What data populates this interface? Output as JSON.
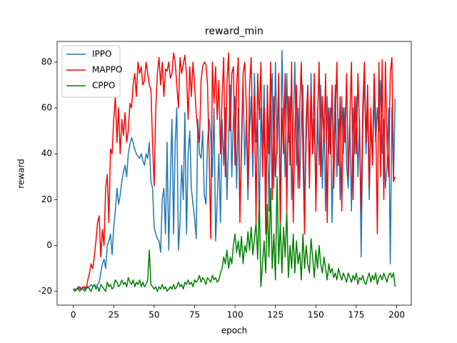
{
  "chart_data": {
    "type": "line",
    "title": "reward_min",
    "xlabel": "epoch",
    "ylabel": "reward",
    "x": [
      0,
      1,
      2,
      3,
      4,
      5,
      6,
      7,
      8,
      9,
      10,
      11,
      12,
      13,
      14,
      15,
      16,
      17,
      18,
      19,
      20,
      21,
      22,
      23,
      24,
      25,
      26,
      27,
      28,
      29,
      30,
      31,
      32,
      33,
      34,
      35,
      36,
      37,
      38,
      39,
      40,
      41,
      42,
      43,
      44,
      45,
      46,
      47,
      48,
      49,
      50,
      51,
      52,
      53,
      54,
      55,
      56,
      57,
      58,
      59,
      60,
      61,
      62,
      63,
      64,
      65,
      66,
      67,
      68,
      69,
      70,
      71,
      72,
      73,
      74,
      75,
      76,
      77,
      78,
      79,
      80,
      81,
      82,
      83,
      84,
      85,
      86,
      87,
      88,
      89,
      90,
      91,
      92,
      93,
      94,
      95,
      96,
      97,
      98,
      99,
      100,
      101,
      102,
      103,
      104,
      105,
      106,
      107,
      108,
      109,
      110,
      111,
      112,
      113,
      114,
      115,
      116,
      117,
      118,
      119,
      120,
      121,
      122,
      123,
      124,
      125,
      126,
      127,
      128,
      129,
      130,
      131,
      132,
      133,
      134,
      135,
      136,
      137,
      138,
      139,
      140,
      141,
      142,
      143,
      144,
      145,
      146,
      147,
      148,
      149,
      150,
      151,
      152,
      153,
      154,
      155,
      156,
      157,
      158,
      159,
      160,
      161,
      162,
      163,
      164,
      165,
      166,
      167,
      168,
      169,
      170,
      171,
      172,
      173,
      174,
      175,
      176,
      177,
      178,
      179,
      180,
      181,
      182,
      183,
      184,
      185,
      186,
      187,
      188,
      189,
      190,
      191,
      192,
      193,
      194,
      195,
      196,
      197,
      198,
      199
    ],
    "series": [
      {
        "name": "IPPO",
        "color": "#1f77b4",
        "values": [
          -19,
          -19,
          -19,
          -18,
          -19,
          -19,
          -18,
          -19,
          -18,
          -18,
          -18,
          -17,
          -18,
          -17,
          -18,
          -17,
          -16,
          -12,
          -8,
          -6,
          -10,
          0,
          2,
          5,
          -4,
          8,
          15,
          25,
          18,
          22,
          28,
          32,
          35,
          30,
          40,
          44,
          47,
          45,
          42,
          40,
          39,
          38,
          40,
          37,
          35,
          40,
          38,
          45,
          28,
          25,
          8,
          5,
          3,
          2,
          -3,
          20,
          25,
          5,
          45,
          -2,
          28,
          55,
          5,
          45,
          60,
          -2,
          10,
          35,
          20,
          58,
          5,
          40,
          50,
          25,
          18,
          12,
          3,
          55,
          40,
          38,
          50,
          22,
          18,
          45,
          55,
          48,
          30,
          60,
          2,
          20,
          40,
          10,
          55,
          35,
          60,
          20,
          45,
          70,
          30,
          55,
          65,
          25,
          60,
          15,
          40,
          72,
          35,
          55,
          20,
          50,
          65,
          30,
          75,
          45,
          55,
          10,
          60,
          40,
          70,
          25,
          55,
          15,
          60,
          75,
          25,
          80,
          40,
          70,
          10,
          85,
          55,
          30,
          75,
          45,
          65,
          20,
          50,
          80,
          35,
          60,
          25,
          55,
          70,
          15,
          45,
          65,
          30,
          75,
          40,
          55,
          20,
          60,
          35,
          70,
          25,
          55,
          15,
          65,
          40,
          60,
          10,
          45,
          70,
          30,
          55,
          20,
          65,
          40,
          60,
          35,
          25,
          55,
          15,
          60,
          40,
          65,
          30,
          55,
          -5,
          50,
          75,
          40,
          60,
          20,
          55,
          35,
          65,
          45,
          60,
          50,
          72,
          40,
          55,
          25,
          35,
          60,
          -8,
          60,
          28,
          64
        ]
      },
      {
        "name": "MAPPO",
        "color": "#ff0000",
        "values": [
          -19,
          -20,
          -19,
          -19,
          -18,
          -19,
          -18,
          -18,
          -19,
          -15,
          -12,
          -8,
          -10,
          -5,
          2,
          10,
          13,
          -5,
          7,
          0,
          25,
          31,
          10,
          42,
          40,
          55,
          65,
          45,
          60,
          40,
          55,
          48,
          58,
          45,
          50,
          62,
          60,
          70,
          75,
          65,
          80,
          75,
          78,
          70,
          72,
          80,
          75,
          70,
          68,
          45,
          26,
          60,
          75,
          82,
          70,
          80,
          65,
          77,
          76,
          80,
          73,
          75,
          84,
          80,
          70,
          60,
          82,
          75,
          79,
          83,
          75,
          55,
          78,
          65,
          80,
          70,
          58,
          50,
          45,
          72,
          78,
          80,
          79,
          70,
          40,
          3,
          80,
          62,
          78,
          55,
          72,
          40,
          65,
          82,
          30,
          70,
          84,
          50,
          75,
          78,
          35,
          70,
          82,
          10,
          45,
          75,
          80,
          60,
          25,
          70,
          82,
          40,
          65,
          10,
          75,
          55,
          80,
          30,
          60,
          5,
          70,
          40,
          80,
          20,
          65,
          30,
          45,
          75,
          5,
          60,
          40,
          75,
          15,
          65,
          35,
          80,
          10,
          50,
          70,
          25,
          60,
          80,
          40,
          5,
          55,
          70,
          25,
          65,
          40,
          75,
          15,
          55,
          80,
          30,
          65,
          45,
          75,
          10,
          60,
          40,
          70,
          25,
          55,
          80,
          35,
          65,
          15,
          60,
          45,
          75,
          30,
          55,
          80,
          20,
          65,
          40,
          75,
          50,
          15,
          60,
          80,
          45,
          70,
          25,
          60,
          35,
          75,
          55,
          5,
          80,
          30,
          81,
          20,
          80,
          45,
          30,
          75,
          82,
          28,
          30
        ]
      },
      {
        "name": "CPPO",
        "color": "#008000",
        "values": [
          -19,
          -20,
          -19,
          -19,
          -20,
          -19,
          -19,
          -20,
          -19,
          -18,
          -19,
          -20,
          -18,
          -17,
          -19,
          -18,
          -20,
          -17,
          -18,
          -19,
          -20,
          -16,
          -18,
          -17,
          -19,
          -18,
          -15,
          -16,
          -18,
          -17,
          -15,
          -17,
          -16,
          -18,
          -14,
          -16,
          -17,
          -15,
          -18,
          -16,
          -17,
          -15,
          -18,
          -16,
          -18,
          -17,
          -15,
          -2,
          -17,
          -18,
          -19,
          -18,
          -20,
          -18,
          -19,
          -17,
          -19,
          -18,
          -20,
          -19,
          -18,
          -19,
          -17,
          -19,
          -18,
          -16,
          -18,
          -17,
          -19,
          -16,
          -17,
          -15,
          -17,
          -16,
          -18,
          -15,
          -16,
          -15,
          -13,
          -16,
          -14,
          -15,
          -17,
          -14,
          -15,
          -16,
          -13,
          -15,
          -14,
          -16,
          -15,
          -12,
          -10,
          -5,
          -8,
          -2,
          -10,
          -5,
          -8,
          0,
          5,
          -3,
          2,
          -5,
          4,
          -8,
          0,
          -3,
          6,
          -2,
          8,
          -4,
          3,
          10,
          -6,
          20,
          -18,
          -8,
          2,
          -12,
          18,
          -5,
          25,
          -10,
          5,
          -15,
          30,
          -8,
          10,
          -12,
          8,
          -5,
          15,
          -14,
          0,
          -10,
          5,
          -12,
          2,
          -8,
          -3,
          -15,
          5,
          -10,
          0,
          -8,
          -12,
          3,
          -5,
          -14,
          -2,
          -10,
          0,
          -8,
          -12,
          -5,
          -10,
          -15,
          -8,
          -12,
          -10,
          -14,
          -12,
          -15,
          -10,
          -13,
          -15,
          -12,
          -14,
          -16,
          -12,
          -14,
          -16,
          -13,
          -15,
          -12,
          -17,
          -14,
          -15,
          -13,
          -16,
          -17,
          -14,
          -12,
          -16,
          -13,
          -15,
          -12,
          -17,
          -14,
          -13,
          -15,
          -12,
          -14,
          -16,
          -13,
          -12,
          -14,
          -12,
          -18
        ]
      }
    ],
    "xlim": [
      -10,
      209
    ],
    "ylim": [
      -26,
      89
    ],
    "xticks": [
      0,
      25,
      50,
      75,
      100,
      125,
      150,
      175,
      200
    ],
    "yticks": [
      -20,
      0,
      20,
      40,
      60,
      80
    ],
    "legend": "upper left"
  }
}
